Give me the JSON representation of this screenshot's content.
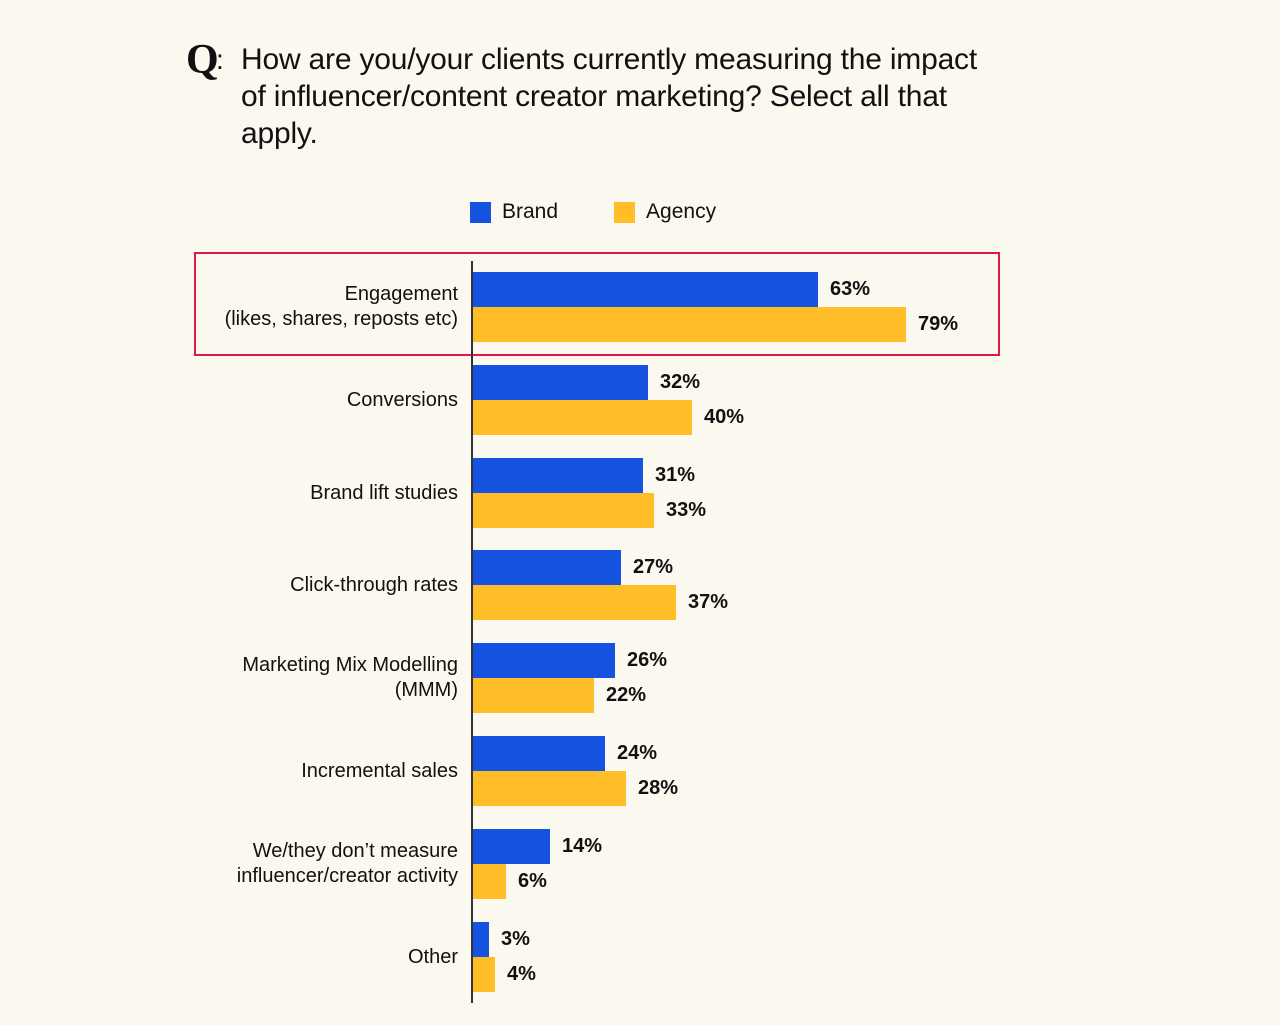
{
  "question": {
    "mark": "Q",
    "colon": ":",
    "text": "How are you/your clients currently measuring the impact of influencer/content creator marketing? Select all that apply."
  },
  "legend": {
    "items": [
      {
        "label": "Brand",
        "color": "#1652e0"
      },
      {
        "label": "Agency",
        "color": "#ffbd27"
      }
    ]
  },
  "colors": {
    "brand": "#1652e0",
    "agency": "#ffbd27",
    "highlight": "#e0194a",
    "background": "#fbf8f0"
  },
  "rows": [
    {
      "label_lines": [
        "Engagement",
        "(likes, shares, reposts etc)"
      ],
      "brand": 63,
      "agency": 79,
      "brand_label": "63%",
      "agency_label": "79%",
      "highlighted": true
    },
    {
      "label_lines": [
        "Conversions"
      ],
      "brand": 32,
      "agency": 40,
      "brand_label": "32%",
      "agency_label": "40%"
    },
    {
      "label_lines": [
        "Brand lift studies"
      ],
      "brand": 31,
      "agency": 33,
      "brand_label": "31%",
      "agency_label": "33%"
    },
    {
      "label_lines": [
        "Click-through rates"
      ],
      "brand": 27,
      "agency": 37,
      "brand_label": "27%",
      "agency_label": "37%"
    },
    {
      "label_lines": [
        "Marketing Mix Modelling",
        "(MMM)"
      ],
      "brand": 26,
      "agency": 22,
      "brand_label": "26%",
      "agency_label": "22%"
    },
    {
      "label_lines": [
        "Incremental sales"
      ],
      "brand": 24,
      "agency": 28,
      "brand_label": "24%",
      "agency_label": "28%"
    },
    {
      "label_lines": [
        "We/they don’t measure",
        "influencer/creator activity"
      ],
      "brand": 14,
      "agency": 6,
      "brand_label": "14%",
      "agency_label": "6%"
    },
    {
      "label_lines": [
        "Other"
      ],
      "brand": 3,
      "agency": 4,
      "brand_label": "3%",
      "agency_label": "4%"
    }
  ],
  "chart_data": {
    "type": "bar",
    "orientation": "horizontal",
    "title": "How are you/your clients currently measuring the impact of influencer/content creator marketing? Select all that apply.",
    "categories": [
      "Engagement (likes, shares, reposts etc)",
      "Conversions",
      "Brand lift studies",
      "Click-through rates",
      "Marketing Mix Modelling (MMM)",
      "Incremental sales",
      "We/they don’t measure influencer/creator activity",
      "Other"
    ],
    "series": [
      {
        "name": "Brand",
        "color": "#1652e0",
        "values": [
          63,
          32,
          31,
          27,
          26,
          24,
          14,
          3
        ]
      },
      {
        "name": "Agency",
        "color": "#ffbd27",
        "values": [
          79,
          40,
          33,
          37,
          22,
          28,
          6,
          4
        ]
      }
    ],
    "xlabel": "",
    "ylabel": "",
    "value_format": "percent",
    "legend_position": "top",
    "grid": false,
    "annotations": [
      "Engagement row highlighted with red box"
    ]
  }
}
